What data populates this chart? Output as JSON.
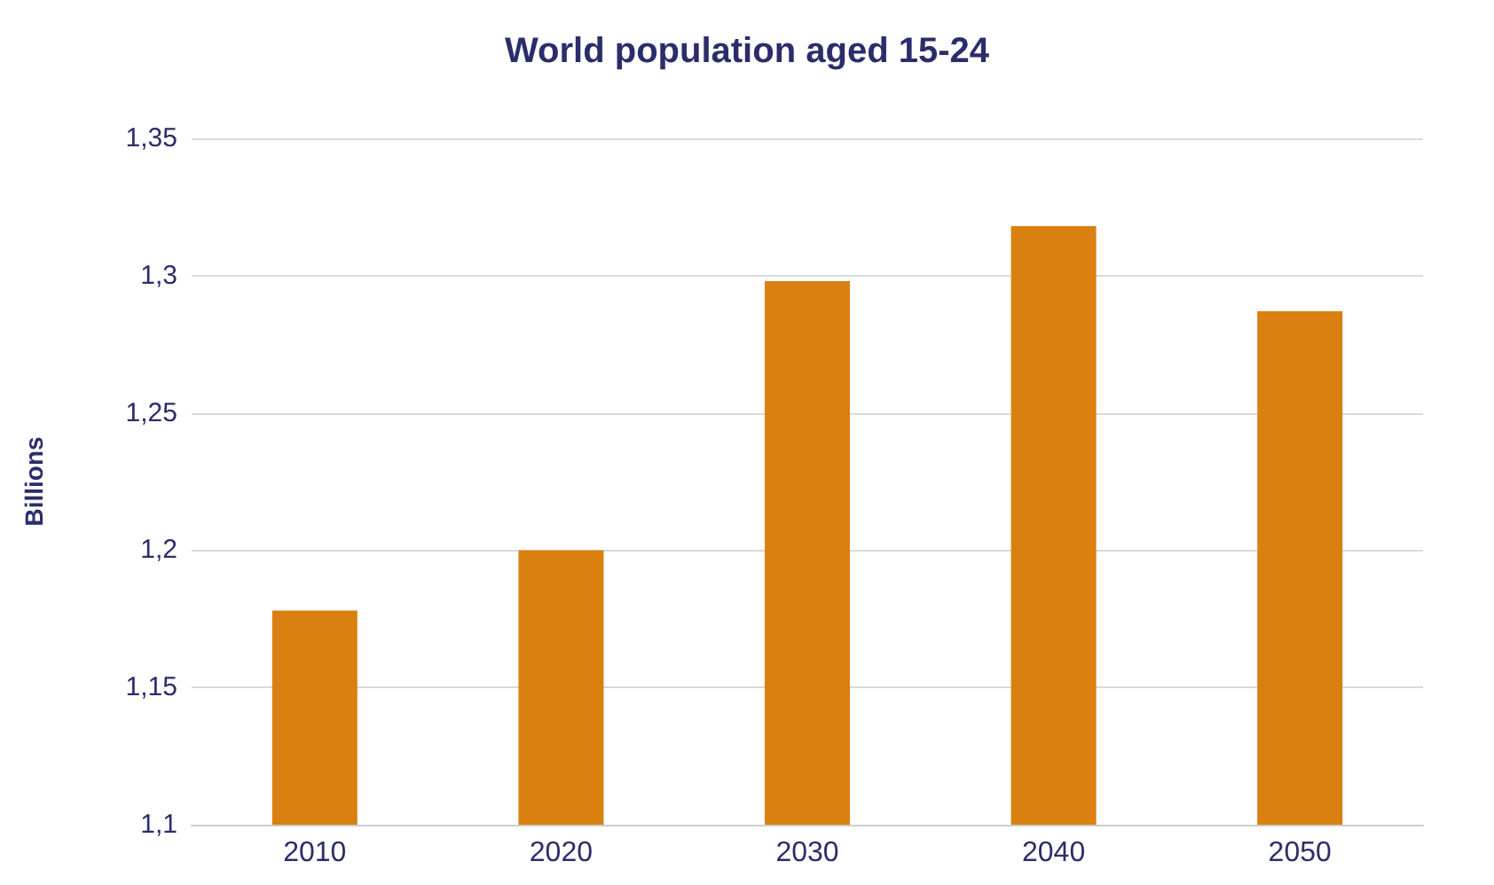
{
  "chart_data": {
    "type": "bar",
    "title": "World population aged 15-24",
    "ylabel": "Billions",
    "categories": [
      "2010",
      "2020",
      "2030",
      "2040",
      "2050"
    ],
    "values": [
      1.178,
      1.2,
      1.298,
      1.318,
      1.287
    ],
    "color": "#d98010",
    "ylim": [
      1.1,
      1.35
    ],
    "yticks": [
      {
        "value": 1.1,
        "label": "1,1"
      },
      {
        "value": 1.15,
        "label": "1,15"
      },
      {
        "value": 1.2,
        "label": "1,2"
      },
      {
        "value": 1.25,
        "label": "1,25"
      },
      {
        "value": 1.3,
        "label": "1,3"
      },
      {
        "value": 1.35,
        "label": "1,35"
      }
    ],
    "grid": "y"
  }
}
